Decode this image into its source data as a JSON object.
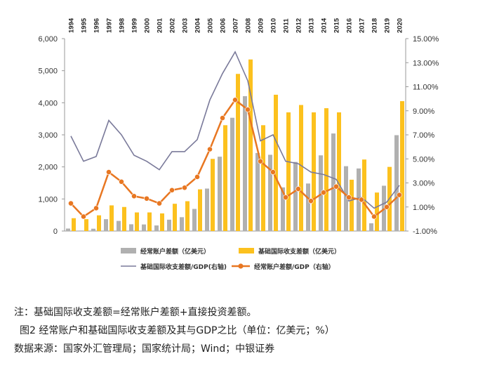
{
  "chart_data": {
    "type": "bar",
    "categories": [
      "1994",
      "1995",
      "1996",
      "1997",
      "1998",
      "1999",
      "2000",
      "2001",
      "2002",
      "2003",
      "2004",
      "2005",
      "2006",
      "2007",
      "2008",
      "2009",
      "2010",
      "2011",
      "2012",
      "2013",
      "2014",
      "2015",
      "2016",
      "2017",
      "2018",
      "2019",
      "2020"
    ],
    "series": [
      {
        "name": "经常账户差额（亿美元）",
        "type": "bar",
        "axis": "left",
        "color": "#b0b0b0",
        "values": [
          77,
          16,
          72,
          370,
          315,
          211,
          205,
          174,
          354,
          431,
          689,
          1324,
          2318,
          3532,
          4206,
          2433,
          2378,
          1361,
          2154,
          1482,
          2360,
          3042,
          2022,
          1951,
          241,
          1413,
          2989
        ]
      },
      {
        "name": "基础国际收支差额（亿美元）",
        "type": "bar",
        "axis": "left",
        "color": "#fcc11e",
        "values": [
          400,
          370,
          490,
          800,
          750,
          580,
          580,
          550,
          850,
          930,
          1300,
          2250,
          3300,
          4900,
          5350,
          3300,
          4250,
          3700,
          3930,
          3700,
          3830,
          3700,
          1600,
          2230,
          1200,
          2000,
          4050
        ]
      },
      {
        "name": "基础国际收支差额/GDP(右轴)",
        "type": "line",
        "axis": "right",
        "color": "#7a7a9a",
        "values": [
          6.9,
          4.8,
          5.2,
          8.2,
          7.0,
          5.3,
          4.8,
          4.1,
          5.6,
          5.6,
          6.6,
          9.9,
          12.1,
          13.9,
          11.5,
          6.5,
          7.0,
          4.8,
          4.6,
          3.9,
          3.7,
          3.3,
          1.5,
          1.8,
          0.9,
          1.4,
          2.8
        ]
      },
      {
        "name": "经常账户差额/GDP（右轴）",
        "type": "line",
        "axis": "right",
        "color": "#e87722",
        "values": [
          1.3,
          0.2,
          0.9,
          3.9,
          3.1,
          1.9,
          1.7,
          1.3,
          2.4,
          2.6,
          3.5,
          5.8,
          8.4,
          9.9,
          9.1,
          4.8,
          3.9,
          1.8,
          2.5,
          1.5,
          2.2,
          2.7,
          1.8,
          1.6,
          0.2,
          1.0,
          2.0
        ]
      }
    ],
    "y_left": {
      "ylim": [
        0,
        6000
      ],
      "ticks": [
        "0",
        "1,000",
        "2,000",
        "3,000",
        "4,000",
        "5,000",
        "6,000"
      ]
    },
    "y_right": {
      "ylim": [
        -1,
        15
      ],
      "ticks": [
        "-1.00%",
        "1.00%",
        "3.00%",
        "5.00%",
        "7.00%",
        "9.00%",
        "11.00%",
        "13.00%",
        "15.00%"
      ]
    },
    "grid": false,
    "legend": "bottom"
  },
  "notes": {
    "note": "注：基础国际收支差额=经常账户差额+直接投资差额。",
    "caption": "图2  经常账户和基础国际收支差额及其与GDP之比（单位：亿美元；%）",
    "source": "数据来源：国家外汇管理局；国家统计局；Wind；中银证券"
  }
}
